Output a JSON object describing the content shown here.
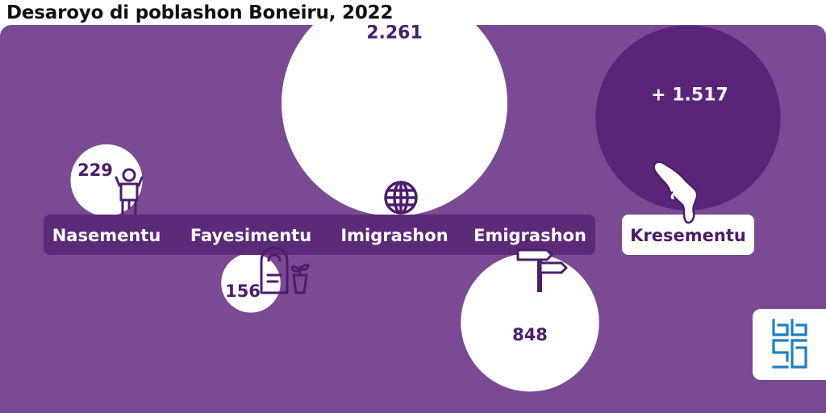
{
  "title": "Desaroyo di poblashon Boneiru, 2022",
  "colors": {
    "panel": "#7b4a94",
    "bar": "#5b2a78",
    "dark_circle": "#5a2479",
    "text_dark": "#4b1d6a",
    "white": "#ffffff",
    "logo_blue": "#1f7fc2"
  },
  "chart_data": {
    "type": "bubble",
    "categories": [
      "Nasementu",
      "Fayesimentu",
      "Imigrashon",
      "Emigrashon",
      "Kresementu"
    ],
    "values": [
      229,
      156,
      2261,
      848,
      1517
    ],
    "value_labels": [
      "229",
      "156",
      "2.261",
      "848",
      "+ 1.517"
    ],
    "placement": [
      "above",
      "below",
      "above",
      "below",
      "above"
    ],
    "icons": [
      "baby-icon",
      "gravestone-icon",
      "globe-icon",
      "signpost-icon",
      "island-map-icon"
    ]
  }
}
